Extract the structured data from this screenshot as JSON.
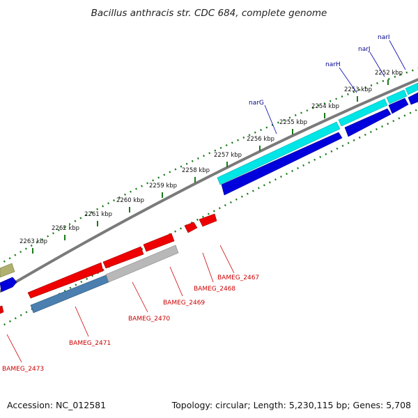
{
  "title": "Bacillus anthracis str. CDC 684, complete genome",
  "footer": {
    "accession": "Accession: NC_012581",
    "topology": "Topology: circular; Length: 5,230,115 bp; Genes: 5,708"
  },
  "colors": {
    "backbone": "#808080",
    "tick": "#1a7a1a",
    "cyan_gene": "#00e5e5",
    "blue_gene": "#0000dd",
    "red_gene": "#ee0000",
    "steel_gene": "#4a7fb0",
    "gray_gene": "#b8b8b8",
    "olive_gene": "#b0b070",
    "blue_label": "#00008b",
    "red_label": "#cc0000"
  },
  "ticks": [
    {
      "label": "2252 kbp"
    },
    {
      "label": "2253 kbp"
    },
    {
      "label": "2254 kbp"
    },
    {
      "label": "2255 kbp"
    },
    {
      "label": "2256 kbp"
    },
    {
      "label": "2257 kbp"
    },
    {
      "label": "2258 kbp"
    },
    {
      "label": "2259 kbp"
    },
    {
      "label": "2260 kbp"
    },
    {
      "label": "2261 kbp"
    },
    {
      "label": "2262 kbp"
    },
    {
      "label": "2263 kbp"
    }
  ],
  "gene_labels": {
    "forward": [
      "narI",
      "narJ",
      "narH",
      "narG"
    ],
    "reverse": [
      "BAMEG_2467",
      "BAMEG_2468",
      "BAMEG_2469",
      "BAMEG_2470",
      "BAMEG_2471",
      "BAMEG_2473"
    ]
  }
}
